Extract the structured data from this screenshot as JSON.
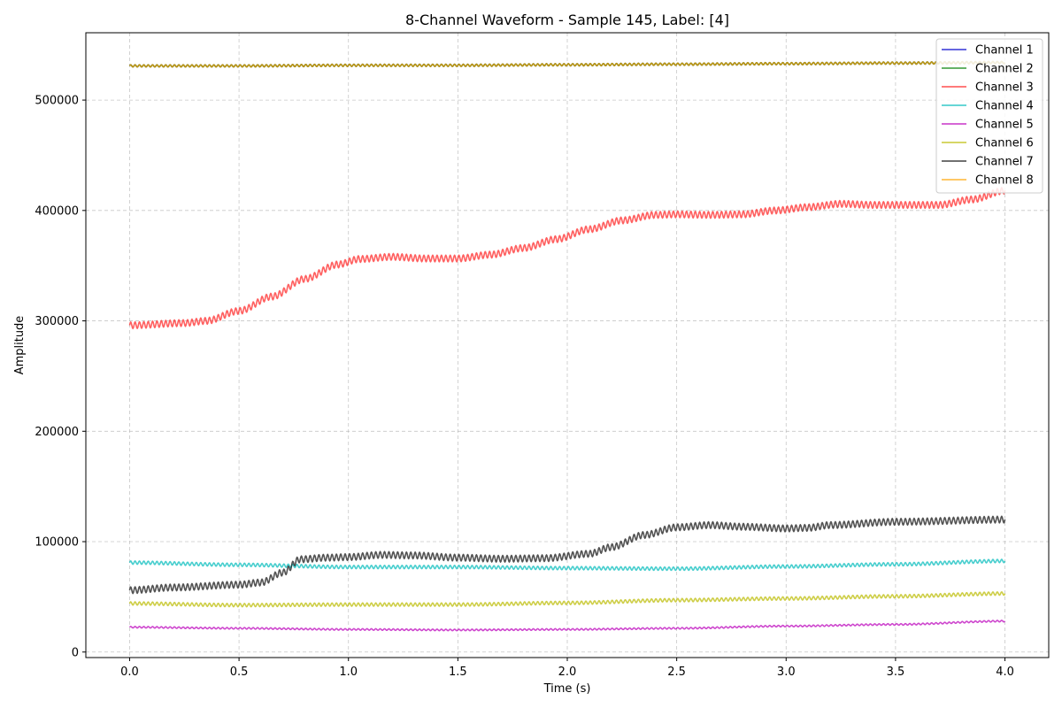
{
  "chart_data": {
    "type": "line",
    "title": "8-Channel Waveform - Sample 145, Label: [4]",
    "xlabel": "Time (s)",
    "ylabel": "Amplitude",
    "xlim": [
      -0.2,
      4.2
    ],
    "ylim": [
      -5000,
      561000
    ],
    "xticks": [
      0.0,
      0.5,
      1.0,
      1.5,
      2.0,
      2.5,
      3.0,
      3.5,
      4.0
    ],
    "xtick_labels": [
      "0.0",
      "0.5",
      "1.0",
      "1.5",
      "2.0",
      "2.5",
      "3.0",
      "3.5",
      "4.0"
    ],
    "yticks": [
      0,
      100000,
      200000,
      300000,
      400000,
      500000
    ],
    "ytick_labels": [
      "0",
      "100000",
      "200000",
      "300000",
      "400000",
      "500000"
    ],
    "grid": true,
    "legend_position": "top-right",
    "ripple_cycles": 200,
    "series": [
      {
        "name": "Channel 1",
        "color": "#0000cc",
        "ripple": 1000,
        "x": [
          0,
          0.5,
          1,
          1.5,
          2,
          2.5,
          3,
          3.5,
          4
        ],
        "y": [
          531000,
          531000,
          531500,
          531500,
          532000,
          532500,
          533000,
          533500,
          534000
        ]
      },
      {
        "name": "Channel 2",
        "color": "#008000",
        "ripple": 1000,
        "x": [
          0,
          0.5,
          1,
          1.5,
          2,
          2.5,
          3,
          3.5,
          4
        ],
        "y": [
          531000,
          531000,
          531500,
          531500,
          532000,
          532500,
          533000,
          533500,
          534000
        ]
      },
      {
        "name": "Channel 3",
        "color": "#ff2222",
        "ripple": 3000,
        "x": [
          0,
          0.25,
          0.35,
          0.5,
          0.65,
          0.8,
          0.95,
          1.05,
          1.2,
          1.35,
          1.5,
          1.65,
          1.8,
          1.95,
          2.1,
          2.25,
          2.4,
          2.5,
          2.65,
          2.8,
          2.95,
          3.1,
          3.25,
          3.4,
          3.55,
          3.7,
          3.85,
          4.0
        ],
        "y": [
          296000,
          298000,
          300000,
          309000,
          322000,
          338000,
          351000,
          356000,
          358000,
          356500,
          356500,
          360000,
          366000,
          374000,
          383000,
          391000,
          396000,
          396500,
          396000,
          396500,
          400000,
          403000,
          406000,
          405000,
          405000,
          405000,
          410000,
          418000
        ]
      },
      {
        "name": "Channel 4",
        "color": "#00bbbb",
        "ripple": 1500,
        "x": [
          0,
          0.5,
          1,
          1.5,
          2,
          2.5,
          3,
          3.5,
          4
        ],
        "y": [
          81000,
          79000,
          77000,
          77000,
          76000,
          75500,
          77500,
          79500,
          82500
        ]
      },
      {
        "name": "Channel 5",
        "color": "#bb00bb",
        "ripple": 700,
        "x": [
          0,
          0.5,
          1,
          1.5,
          2,
          2.5,
          3,
          3.5,
          4
        ],
        "y": [
          22500,
          21500,
          20500,
          20000,
          20500,
          21500,
          23500,
          25000,
          28000
        ]
      },
      {
        "name": "Channel 6",
        "color": "#bbbb00",
        "ripple": 1500,
        "x": [
          0,
          0.5,
          1,
          1.5,
          2,
          2.5,
          3,
          3.5,
          4
        ],
        "y": [
          44000,
          42500,
          43000,
          43000,
          44500,
          47000,
          48500,
          50500,
          53000
        ]
      },
      {
        "name": "Channel 7",
        "color": "#111111",
        "ripple": 3000,
        "x": [
          0,
          0.2,
          0.5,
          0.6,
          0.7,
          0.78,
          0.9,
          1.0,
          1.15,
          1.3,
          1.5,
          1.7,
          1.9,
          2.1,
          2.2,
          2.35,
          2.5,
          2.65,
          2.8,
          3.0,
          3.1,
          3.2,
          3.5,
          4.0
        ],
        "y": [
          56000,
          58500,
          61000,
          63000,
          72000,
          84000,
          85500,
          86000,
          88000,
          87500,
          85500,
          84500,
          85000,
          89000,
          95000,
          106000,
          113000,
          115000,
          113500,
          112000,
          112500,
          115000,
          118000,
          120000
        ]
      },
      {
        "name": "Channel 8",
        "color": "#ffa500",
        "ripple": 1000,
        "x": [
          0,
          0.5,
          1,
          1.5,
          2,
          2.5,
          3,
          3.5,
          4
        ],
        "y": [
          531000,
          531000,
          531500,
          531500,
          532000,
          532500,
          533000,
          533500,
          534000
        ]
      }
    ]
  }
}
